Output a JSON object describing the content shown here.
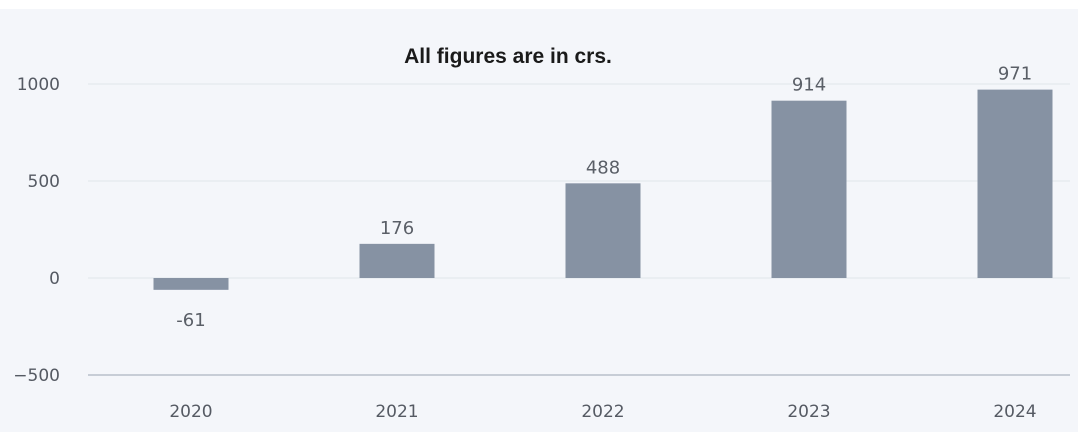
{
  "chart_data": {
    "type": "bar",
    "title": "All figures are in crs.",
    "xlabel": "",
    "ylabel": "",
    "categories": [
      "2020",
      "2021",
      "2022",
      "2023",
      "2024"
    ],
    "values": [
      -61,
      176,
      488,
      914,
      971
    ],
    "data_labels": [
      "-61",
      "176",
      "488",
      "914",
      "971"
    ],
    "y_ticks": [
      1000,
      500,
      0,
      -500
    ],
    "ylim": [
      -500,
      1000
    ],
    "grid": true,
    "legend": "none",
    "colors": {
      "bar": "#8692a3",
      "grid": "#e1e5eb",
      "baseline": "#9aa4b3",
      "background": "#f4f6fa"
    }
  }
}
